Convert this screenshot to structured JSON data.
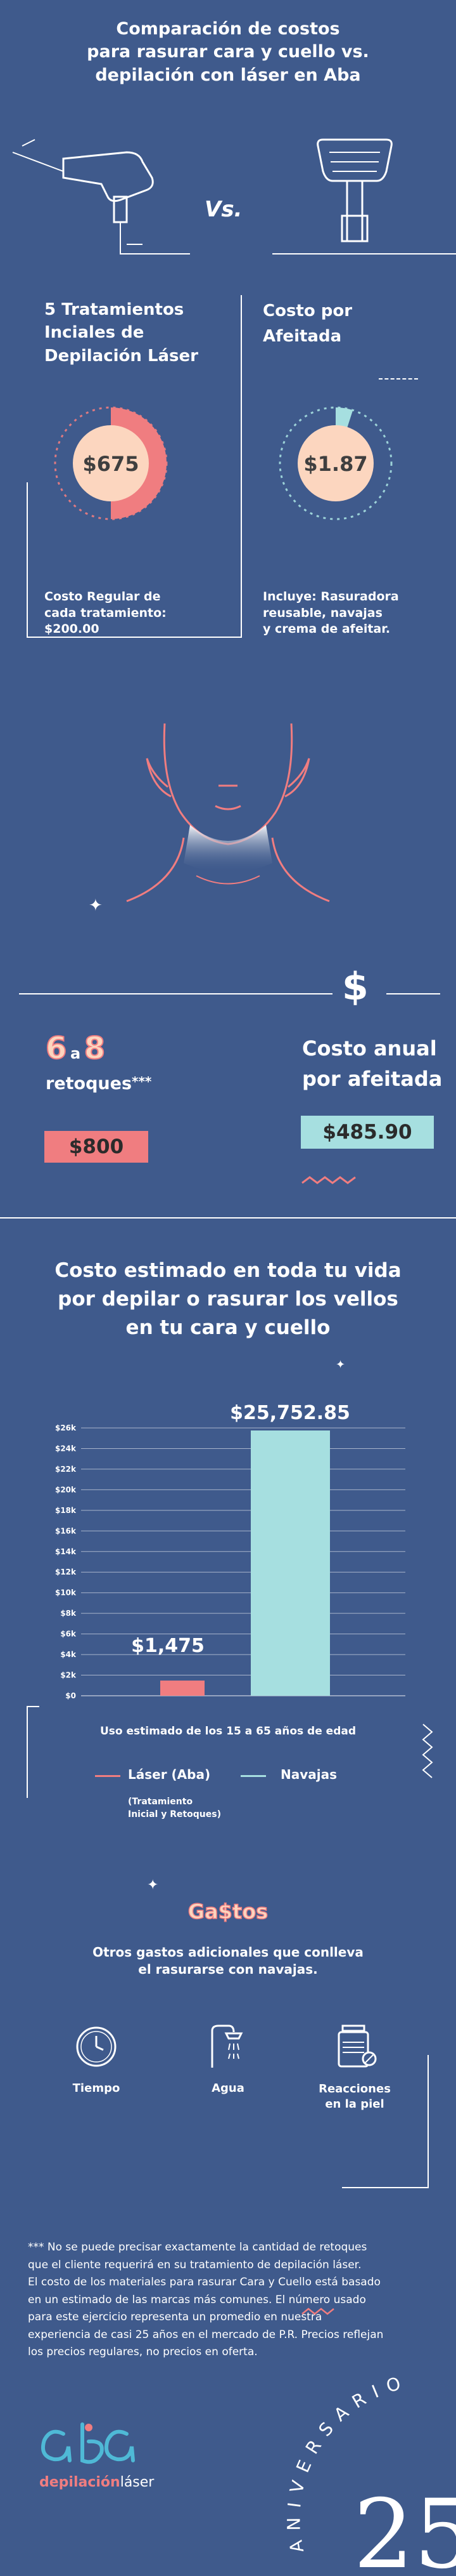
{
  "header": {
    "title_line1": "Comparación de costos",
    "title_line2": "para rasurar cara y cuello vs.",
    "title_line3": "depilación con láser en Aba",
    "vs": "Vs."
  },
  "comparison": {
    "left_heading_line1": "5 Tratamientos",
    "left_heading_line2": "Inciales de",
    "left_heading_line3": "Depilación Láser",
    "right_heading_line1": "Costo por",
    "right_heading_line2": "Afeitada",
    "laser_price": "$675",
    "laser_fill_fraction": 0.5,
    "razor_price": "$1.87",
    "razor_fill_fraction": 0.05,
    "laser_note_line1": "Costo Regular de",
    "laser_note_line2": "cada tratamiento:",
    "laser_note_line3": "$200.00",
    "razor_note_line1": "Incluye: Rasuradora",
    "razor_note_line2": "reusable, navajas",
    "razor_note_line3": "y crema de afeitar."
  },
  "annual": {
    "dollar_icon": "$",
    "retouch_from": "6",
    "retouch_a": "a",
    "retouch_to": "8",
    "retouch_label": "retoques",
    "retouch_stars": "***",
    "retouch_price": "$800",
    "annual_heading_line1": "Costo anual",
    "annual_heading_line2": "por afeitada",
    "annual_price": "$485.90"
  },
  "lifetime": {
    "title_line1": "Costo estimado en toda tu vida",
    "title_line2": "por depilar o rasurar los vellos",
    "title_line3": "en tu cara y cuello"
  },
  "chart_data": {
    "type": "bar",
    "categories": [
      "Láser (Aba)",
      "Navajas"
    ],
    "values": [
      1475,
      25752.85
    ],
    "value_labels": [
      "$1,475",
      "$25,752.85"
    ],
    "y_ticks": [
      "$0",
      "$2k",
      "$4k",
      "$6k",
      "$8k",
      "$10k",
      "$12k",
      "$14k",
      "$16k",
      "$18k",
      "$20k",
      "$22k",
      "$24k",
      "$26k"
    ],
    "ylim": [
      0,
      26000
    ],
    "xlabel": "Uso estimado de los 15 a 65 años de edad",
    "colors": [
      "#f07d80",
      "#a6dfe0"
    ],
    "legend": [
      {
        "name": "Láser (Aba)",
        "color": "#f07d80"
      },
      {
        "name": "Navajas",
        "color": "#a6dfe0"
      }
    ],
    "legend_note_line1": "(Tratamiento",
    "legend_note_line2": "Inicial y Retoques)",
    "grid": true
  },
  "expenses": {
    "title": "Ga$tos",
    "subtitle_line1": "Otros gastos adicionales que conlleva",
    "subtitle_line2": "el rasurarse con navajas.",
    "items": [
      {
        "label_line1": "Tiempo",
        "label_line2": "",
        "icon": "clock-icon"
      },
      {
        "label_line1": "Agua",
        "label_line2": "",
        "icon": "shower-icon"
      },
      {
        "label_line1": "Reacciones",
        "label_line2": "en la piel",
        "icon": "skin-cream-icon"
      }
    ]
  },
  "footnote": {
    "line1": "*** No se puede precisar exactamente la cantidad de retoques",
    "line2": "que el cliente requerirá en su tratamiento de depilación láser.",
    "line3": "El costo de los materiales para rasurar Cara y Cuello está basado",
    "line4": "en un estimado de las marcas más comunes. El número usado",
    "line5": "para este ejercicio representa un promedio en nuestra",
    "line6": "experiencia de casi 25 años en el mercado de P.R. Precios reflejan",
    "line7": "los precios regulares, no precios en oferta."
  },
  "brand": {
    "logo_text": "aba",
    "logo_sub_left": "depilación",
    "logo_sub_right": "láser",
    "anniversary_text": "ANIVERSARIO",
    "anniversary_number": "25"
  },
  "colors": {
    "background": "#3f5a8c",
    "pink": "#f07d80",
    "teal": "#a6dfe0",
    "peach": "#fcd6bf"
  }
}
